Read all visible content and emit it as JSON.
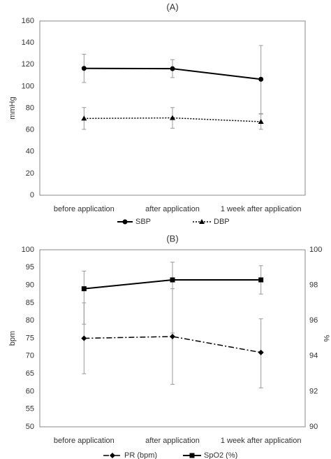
{
  "chart_data": [
    {
      "type": "line",
      "title": "(A)",
      "ylabel": "mmHg",
      "ylim": [
        0,
        160
      ],
      "yticks": [
        0,
        20,
        40,
        60,
        80,
        100,
        120,
        140,
        160
      ],
      "grid": false,
      "legend": "bottom",
      "categories": [
        "before application",
        "after application",
        "1 week after application"
      ],
      "series": [
        {
          "name": "SBP",
          "values": [
            116.5,
            116.2,
            106.5
          ],
          "error_low": [
            103.5,
            108.0,
            75.0
          ],
          "error_high": [
            129.5,
            124.5,
            137.5
          ],
          "marker": "circle",
          "line": "solid",
          "axis": "left"
        },
        {
          "name": "DBP",
          "values": [
            70.5,
            71.0,
            67.5
          ],
          "error_low": [
            60.5,
            61.5,
            60.5
          ],
          "error_high": [
            80.5,
            80.5,
            74.5
          ],
          "marker": "triangle",
          "line": "dotted",
          "axis": "left"
        }
      ]
    },
    {
      "type": "line",
      "title": "(B)",
      "ylabel": "bpm",
      "y2label": "%",
      "ylim": [
        50,
        100
      ],
      "yticks": [
        50,
        55,
        60,
        65,
        70,
        75,
        80,
        85,
        90,
        95,
        100
      ],
      "y2lim": [
        90,
        100
      ],
      "y2ticks": [
        90,
        92,
        94,
        96,
        98,
        100
      ],
      "grid": false,
      "legend": "bottom",
      "categories": [
        "before application",
        "after application",
        "1 week after application"
      ],
      "series": [
        {
          "name": "PR (bpm)",
          "values": [
            75.0,
            75.5,
            71.0
          ],
          "error_low": [
            65.0,
            62.0,
            61.0
          ],
          "error_high": [
            85.0,
            89.0,
            80.5
          ],
          "marker": "diamond",
          "line": "dashdot",
          "axis": "left"
        },
        {
          "name": "SpO2 (%)",
          "values": [
            97.8,
            98.3,
            98.3
          ],
          "error_low": [
            95.8,
            95.3,
            97.5
          ],
          "error_high": [
            98.8,
            99.3,
            99.1
          ],
          "marker": "square",
          "line": "solid",
          "axis": "right"
        }
      ]
    }
  ]
}
